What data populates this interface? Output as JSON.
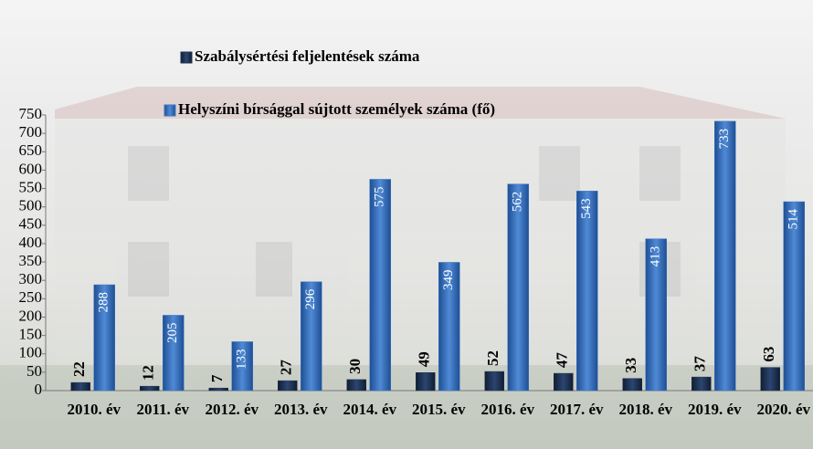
{
  "chart_data": {
    "type": "bar",
    "categories": [
      "2010. év",
      "2011. év",
      "2012. év",
      "2013. év",
      "2014. év",
      "2015. év",
      "2016. év",
      "2017. év",
      "2018. év",
      "2019. év",
      "2020. év"
    ],
    "series": [
      {
        "name": "Szabálysértési feljelentések száma",
        "color": "#1f3556",
        "values": [
          22,
          12,
          7,
          27,
          30,
          49,
          52,
          47,
          33,
          37,
          63
        ]
      },
      {
        "name": "Helyszíni bírsággal sújtott személyek száma (fő)",
        "color": "#3a76c4",
        "values": [
          288,
          205,
          133,
          296,
          575,
          349,
          562,
          543,
          413,
          733,
          514
        ]
      }
    ],
    "ylim": [
      0,
      750
    ],
    "yticks": [
      0,
      50,
      100,
      150,
      200,
      250,
      300,
      350,
      400,
      450,
      500,
      550,
      600,
      650,
      700,
      750
    ],
    "legend": "top"
  }
}
